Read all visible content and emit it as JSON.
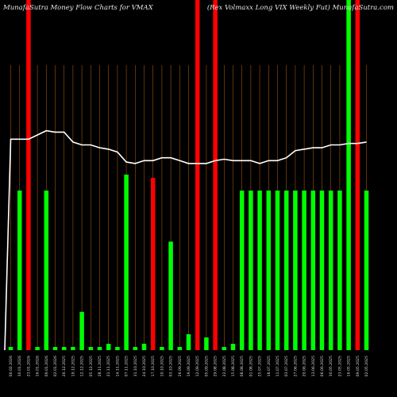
{
  "chart_data": {
    "type": "bar",
    "title_left": "MunafaSutra  Money Flow  Charts for VMAX",
    "title_right": "(Rex Volmaxx Long VIX  Weekly Fut) MunafaSutra.com",
    "ylim": [
      0,
      100
    ],
    "grid": false,
    "categories": [
      "06 Feb 2026",
      "30 Jan 2026",
      "23 Jan 2026",
      "16 Jan 2026",
      "09 Jan 2026",
      "02 Jan 2026",
      "26 Dec 2025",
      "19 Dec 2025",
      "12 Dec 2025",
      "05 Dec 2025",
      "28 Nov 2025",
      "21 Nov 2025",
      "14 Nov 2025",
      "07 Nov 2025",
      "31 Oct 2025",
      "24 Oct 2025",
      "17 Oct 2025",
      "10 Oct 2025",
      "03 Oct 2025",
      "26 Sep 2025",
      "19 Sep 2025",
      "12 Sep 2025",
      "05 Sep 2025",
      "29 Aug 2025",
      "22 Aug 2025",
      "15 Aug 2025",
      "08 Aug 2025",
      "01 Aug 2025",
      "25 Jul 2025",
      "18 Jul 2025",
      "11 Jul 2025",
      "03 Jul 2025",
      "27 Jun 2025",
      "20 Jun 2025",
      "13 Jun 2025",
      "06 Jun 2025",
      "30 May 2025",
      "23 May 2025",
      "16 May 2025",
      "09 May 2025",
      "02 May 2025"
    ],
    "tick_labels": [
      "06.02.2026",
      "30.01.2026",
      "23.01.2026",
      "16.01.2026",
      "09.01.2026",
      "02.01.2026",
      "26.12.2025",
      "19.12.2025",
      "12.12.2025",
      "05.12.2025",
      "28.11.2025",
      "21.11.2025",
      "14.11.2025",
      "07.11.2025",
      "31.10.2025",
      "24.10.2025",
      "17.10.2025",
      "10.10.2025",
      "03.10.2025",
      "26.09.2025",
      "19.09.2025",
      "12.09.2025",
      "05.09.2025",
      "29.08.2025",
      "22.08.2025",
      "15.08.2025",
      "08.08.2025",
      "01.08.2025",
      "25.07.2025",
      "18.07.2025",
      "11.07.2025",
      "03.07.2025",
      "27.06.2025",
      "20.06.2025",
      "13.06.2025",
      "06.06.2025",
      "30.05.2025",
      "23.05.2025",
      "16.05.2025",
      "09.05.2025",
      "02.05.2025"
    ],
    "series": [
      {
        "values": [
          1,
          50,
          100,
          1,
          50,
          1,
          1,
          1,
          12,
          1,
          1,
          2,
          1,
          55,
          1,
          2,
          54,
          1,
          34,
          1,
          5,
          100,
          4,
          100,
          1,
          2,
          50,
          50,
          50,
          50,
          50,
          50,
          50,
          50,
          50,
          50,
          50,
          50,
          100,
          100,
          50
        ],
        "colors": [
          "green",
          "green",
          "red",
          "green",
          "green",
          "green",
          "green",
          "green",
          "green",
          "green",
          "green",
          "green",
          "green",
          "green",
          "green",
          "green",
          "red",
          "green",
          "green",
          "green",
          "green",
          "red",
          "green",
          "red",
          "green",
          "green",
          "green",
          "green",
          "green",
          "green",
          "green",
          "green",
          "green",
          "green",
          "green",
          "green",
          "green",
          "green",
          "green",
          "red",
          "green"
        ]
      },
      {
        "type": "line",
        "values": [
          25,
          74,
          74,
          75.5,
          77,
          76.5,
          76.5,
          73,
          72,
          72,
          71,
          70.5,
          69.5,
          66,
          65.5,
          66.5,
          66.5,
          67.5,
          67.5,
          66.5,
          65.5,
          65.5,
          65.5,
          66.5,
          67,
          66.5,
          66.5,
          66.5,
          65.5,
          66.5,
          66.5,
          67.5,
          70,
          70.5,
          71,
          71,
          72,
          72,
          72.5,
          72.5,
          73
        ]
      }
    ]
  }
}
